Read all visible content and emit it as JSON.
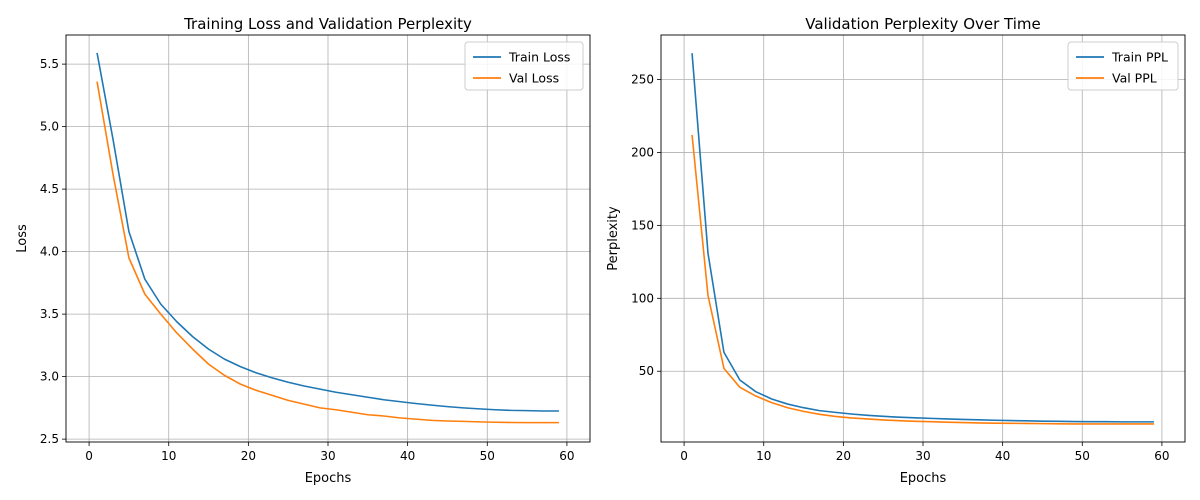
{
  "chart_data": [
    {
      "type": "line",
      "title": "Training Loss and Validation Perplexity",
      "xlabel": "Epochs",
      "ylabel": "Loss",
      "xlim": [
        -2.9,
        62.9
      ],
      "ylim": [
        2.477,
        5.733
      ],
      "xticks": [
        0,
        10,
        20,
        30,
        40,
        50,
        60
      ],
      "yticks": [
        2.5,
        3.0,
        3.5,
        4.0,
        4.5,
        5.0,
        5.5
      ],
      "ytick_labels": [
        "2.5",
        "3.0",
        "3.5",
        "4.0",
        "4.5",
        "5.0",
        "5.5"
      ],
      "grid": true,
      "legend_position": "top-right",
      "x": [
        1,
        3,
        5,
        7,
        9,
        11,
        13,
        15,
        17,
        19,
        21,
        23,
        25,
        27,
        29,
        31,
        33,
        35,
        37,
        39,
        41,
        43,
        45,
        47,
        49,
        51,
        53,
        55,
        57,
        59
      ],
      "series": [
        {
          "name": "Train Loss",
          "color": "#1f77b4",
          "values": [
            5.59,
            4.9,
            4.16,
            3.78,
            3.58,
            3.44,
            3.32,
            3.22,
            3.14,
            3.08,
            3.03,
            2.99,
            2.955,
            2.925,
            2.9,
            2.875,
            2.855,
            2.835,
            2.815,
            2.8,
            2.785,
            2.772,
            2.76,
            2.75,
            2.742,
            2.735,
            2.73,
            2.728,
            2.725,
            2.725
          ]
        },
        {
          "name": "Val Loss",
          "color": "#ff7f0e",
          "values": [
            5.36,
            4.62,
            3.95,
            3.66,
            3.5,
            3.35,
            3.22,
            3.1,
            3.01,
            2.94,
            2.89,
            2.85,
            2.81,
            2.78,
            2.75,
            2.735,
            2.715,
            2.695,
            2.685,
            2.67,
            2.66,
            2.65,
            2.645,
            2.642,
            2.638,
            2.635,
            2.633,
            2.632,
            2.632,
            2.632
          ]
        }
      ]
    },
    {
      "type": "line",
      "title": "Validation Perplexity Over Time",
      "xlabel": "Epochs",
      "ylabel": "Perplexity",
      "xlim": [
        -2.9,
        62.9
      ],
      "ylim": [
        1.5,
        280.5
      ],
      "xticks": [
        0,
        10,
        20,
        30,
        40,
        50,
        60
      ],
      "yticks": [
        50,
        100,
        150,
        200,
        250
      ],
      "ytick_labels": [
        "50",
        "100",
        "150",
        "200",
        "250"
      ],
      "grid": true,
      "legend_position": "top-right",
      "x": [
        1,
        3,
        5,
        7,
        9,
        11,
        13,
        15,
        17,
        19,
        21,
        23,
        25,
        27,
        29,
        31,
        33,
        35,
        37,
        39,
        41,
        43,
        45,
        47,
        49,
        51,
        53,
        55,
        57,
        59
      ],
      "series": [
        {
          "name": "Train PPL",
          "color": "#1f77b4",
          "values": [
            268,
            131,
            63,
            44,
            36,
            31,
            27.5,
            25,
            23,
            21.8,
            20.7,
            19.8,
            19.1,
            18.5,
            18.1,
            17.7,
            17.3,
            17,
            16.7,
            16.4,
            16.2,
            16,
            15.8,
            15.7,
            15.5,
            15.4,
            15.4,
            15.3,
            15.3,
            15.3
          ]
        },
        {
          "name": "Val PPL",
          "color": "#ff7f0e",
          "values": [
            212,
            102,
            52,
            39,
            33,
            28.5,
            25,
            22.5,
            20.5,
            19,
            18,
            17.3,
            16.6,
            16.1,
            15.7,
            15.4,
            15.1,
            14.8,
            14.6,
            14.4,
            14.3,
            14.2,
            14.1,
            14.0,
            13.9,
            13.9,
            13.9,
            13.9,
            13.9,
            13.9
          ]
        }
      ]
    }
  ]
}
